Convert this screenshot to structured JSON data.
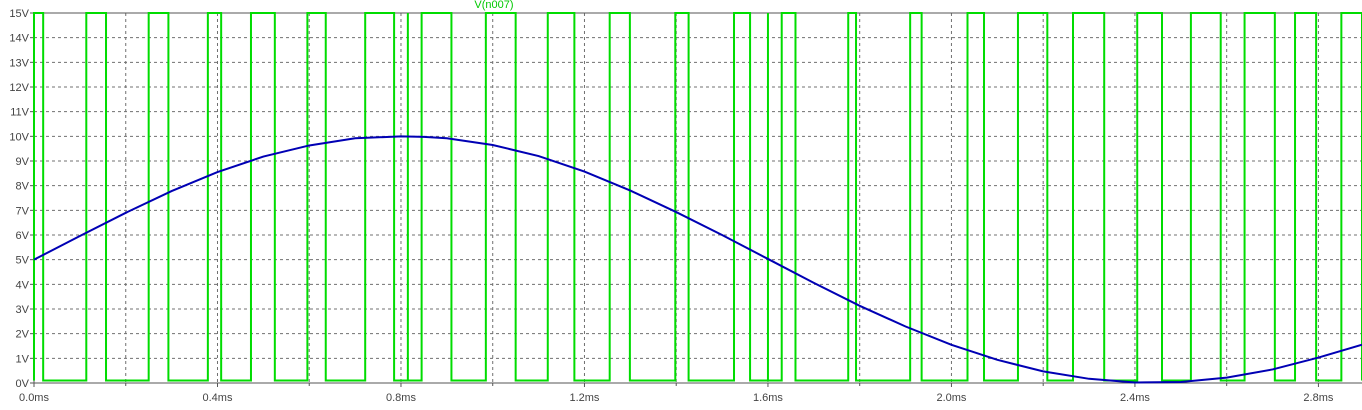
{
  "chart_data": {
    "type": "line",
    "title": "V(n007)",
    "xlabel": "",
    "ylabel": "",
    "x_unit": "ms",
    "y_unit": "V",
    "xlim": [
      0.0,
      2.895
    ],
    "ylim": [
      0.0,
      15.0
    ],
    "grid": true,
    "x_ticks": [
      {
        "value": 0.0,
        "label": "0.0ms"
      },
      {
        "value": 0.4,
        "label": "0.4ms"
      },
      {
        "value": 0.8,
        "label": "0.8ms"
      },
      {
        "value": 1.2,
        "label": "1.2ms"
      },
      {
        "value": 1.6,
        "label": "1.6ms"
      },
      {
        "value": 2.0,
        "label": "2.0ms"
      },
      {
        "value": 2.4,
        "label": "2.4ms"
      },
      {
        "value": 2.8,
        "label": "2.8ms"
      }
    ],
    "x_minor_ticks": [
      0.2,
      0.6,
      1.0,
      1.4,
      1.8,
      2.2,
      2.6
    ],
    "y_ticks": [
      {
        "value": 0,
        "label": "0V"
      },
      {
        "value": 1,
        "label": "1V"
      },
      {
        "value": 2,
        "label": "2V"
      },
      {
        "value": 3,
        "label": "3V"
      },
      {
        "value": 4,
        "label": "4V"
      },
      {
        "value": 5,
        "label": "5V"
      },
      {
        "value": 6,
        "label": "6V"
      },
      {
        "value": 7,
        "label": "7V"
      },
      {
        "value": 8,
        "label": "8V"
      },
      {
        "value": 9,
        "label": "9V"
      },
      {
        "value": 10,
        "label": "10V"
      },
      {
        "value": 11,
        "label": "11V"
      },
      {
        "value": 12,
        "label": "12V"
      },
      {
        "value": 13,
        "label": "13V"
      },
      {
        "value": 14,
        "label": "14V"
      },
      {
        "value": 15,
        "label": "15V"
      }
    ],
    "series": [
      {
        "name": "V(n007)",
        "kind": "pulse",
        "color": "#00dc00",
        "low": 0.1,
        "high": 15.0,
        "high_intervals_ms": [
          [
            0.0,
            0.02
          ],
          [
            0.114,
            0.157
          ],
          [
            0.25,
            0.293
          ],
          [
            0.379,
            0.408
          ],
          [
            0.473,
            0.525
          ],
          [
            0.596,
            0.636
          ],
          [
            0.722,
            0.785
          ],
          [
            0.815,
            0.815
          ],
          [
            0.845,
            0.91
          ],
          [
            0.985,
            1.05
          ],
          [
            1.12,
            1.178
          ],
          [
            1.255,
            1.299
          ],
          [
            1.398,
            1.427
          ],
          [
            1.526,
            1.561
          ],
          [
            1.6,
            1.6
          ],
          [
            1.63,
            1.66
          ],
          [
            1.775,
            1.792
          ],
          [
            1.91,
            1.935
          ],
          [
            2.035,
            2.071
          ],
          [
            2.145,
            2.209
          ],
          [
            2.265,
            2.333
          ],
          [
            2.405,
            2.459
          ],
          [
            2.522,
            2.587
          ],
          [
            2.639,
            2.705
          ],
          [
            2.749,
            2.795
          ],
          [
            2.85,
            2.895
          ]
        ]
      },
      {
        "name": "",
        "kind": "sine",
        "color": "#0000b4",
        "x": [
          0.0,
          0.1,
          0.2,
          0.3,
          0.4,
          0.5,
          0.6,
          0.7,
          0.8,
          0.85,
          0.9,
          1.0,
          1.1,
          1.2,
          1.3,
          1.4,
          1.5,
          1.6,
          1.7,
          1.8,
          1.9,
          2.0,
          2.1,
          2.2,
          2.3,
          2.4,
          2.5,
          2.6,
          2.7,
          2.8,
          2.895
        ],
        "values": [
          5.0,
          5.96,
          6.9,
          7.78,
          8.55,
          9.18,
          9.63,
          9.92,
          10.0,
          9.98,
          9.92,
          9.65,
          9.2,
          8.57,
          7.8,
          6.93,
          6.0,
          5.03,
          4.06,
          3.13,
          2.29,
          1.55,
          0.94,
          0.47,
          0.17,
          0.02,
          0.04,
          0.22,
          0.55,
          1.03,
          1.55
        ]
      }
    ]
  }
}
